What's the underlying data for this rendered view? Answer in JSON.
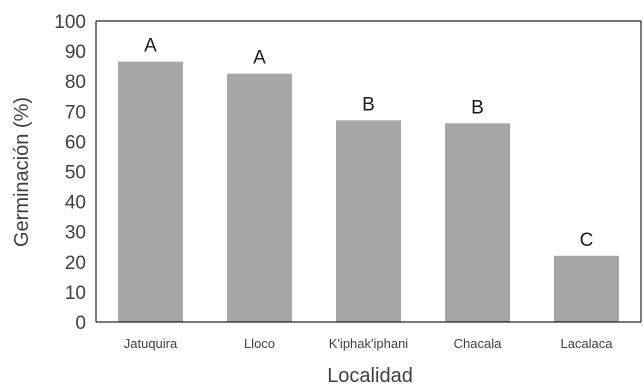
{
  "chart_data": {
    "type": "bar",
    "title": "",
    "xlabel": "Localidad",
    "ylabel": "Germinación (%)",
    "ylim": [
      0,
      100
    ],
    "yticks": [
      "0",
      "10",
      "20",
      "30",
      "40",
      "50",
      "60",
      "70",
      "80",
      "90",
      "100"
    ],
    "categories": [
      "Jatuquira",
      "Lloco",
      "K'iphak'iphani",
      "Chacala",
      "Lacalaca"
    ],
    "values": [
      86.5,
      82.5,
      67,
      66,
      22
    ],
    "annotations": [
      "A",
      "A",
      "B",
      "B",
      "C"
    ],
    "bar_color": "#a6a6a6",
    "grid": false
  }
}
